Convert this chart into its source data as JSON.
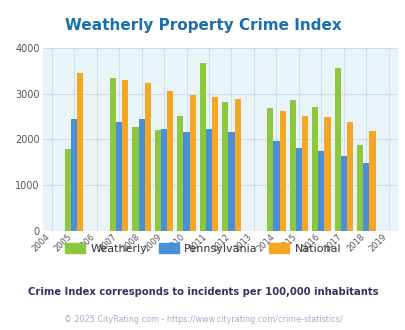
{
  "title": "Weatherly Property Crime Index",
  "title_color": "#1a6faf",
  "years": [
    2005,
    2007,
    2008,
    2009,
    2010,
    2011,
    2012,
    2014,
    2015,
    2016,
    2017,
    2018
  ],
  "weatherly": [
    1780,
    3340,
    2270,
    2210,
    2510,
    3670,
    2820,
    2680,
    2860,
    2710,
    3560,
    1870
  ],
  "pennsylvania": [
    2450,
    2380,
    2450,
    2220,
    2170,
    2220,
    2170,
    1960,
    1810,
    1750,
    1640,
    1490
  ],
  "national": [
    3440,
    3290,
    3230,
    3060,
    2960,
    2930,
    2890,
    2620,
    2520,
    2480,
    2390,
    2180
  ],
  "weatherly_color": "#8dc63f",
  "pennsylvania_color": "#4a90d9",
  "national_color": "#f5a623",
  "plot_bg": "#e8f4f8",
  "ylim": [
    0,
    4000
  ],
  "yticks": [
    0,
    1000,
    2000,
    3000,
    4000
  ],
  "xticks_all": [
    2004,
    2005,
    2006,
    2007,
    2008,
    2009,
    2010,
    2011,
    2012,
    2013,
    2014,
    2015,
    2016,
    2017,
    2018,
    2019
  ],
  "bar_width": 0.27,
  "subtitle": "Crime Index corresponds to incidents per 100,000 inhabitants",
  "subtitle_color": "#333366",
  "copyright": "© 2025 CityRating.com - https://www.cityrating.com/crime-statistics/",
  "copyright_color": "#aaaacc",
  "legend_labels": [
    "Weatherly",
    "Pennsylvania",
    "National"
  ],
  "grid_color": "#c8dde8"
}
